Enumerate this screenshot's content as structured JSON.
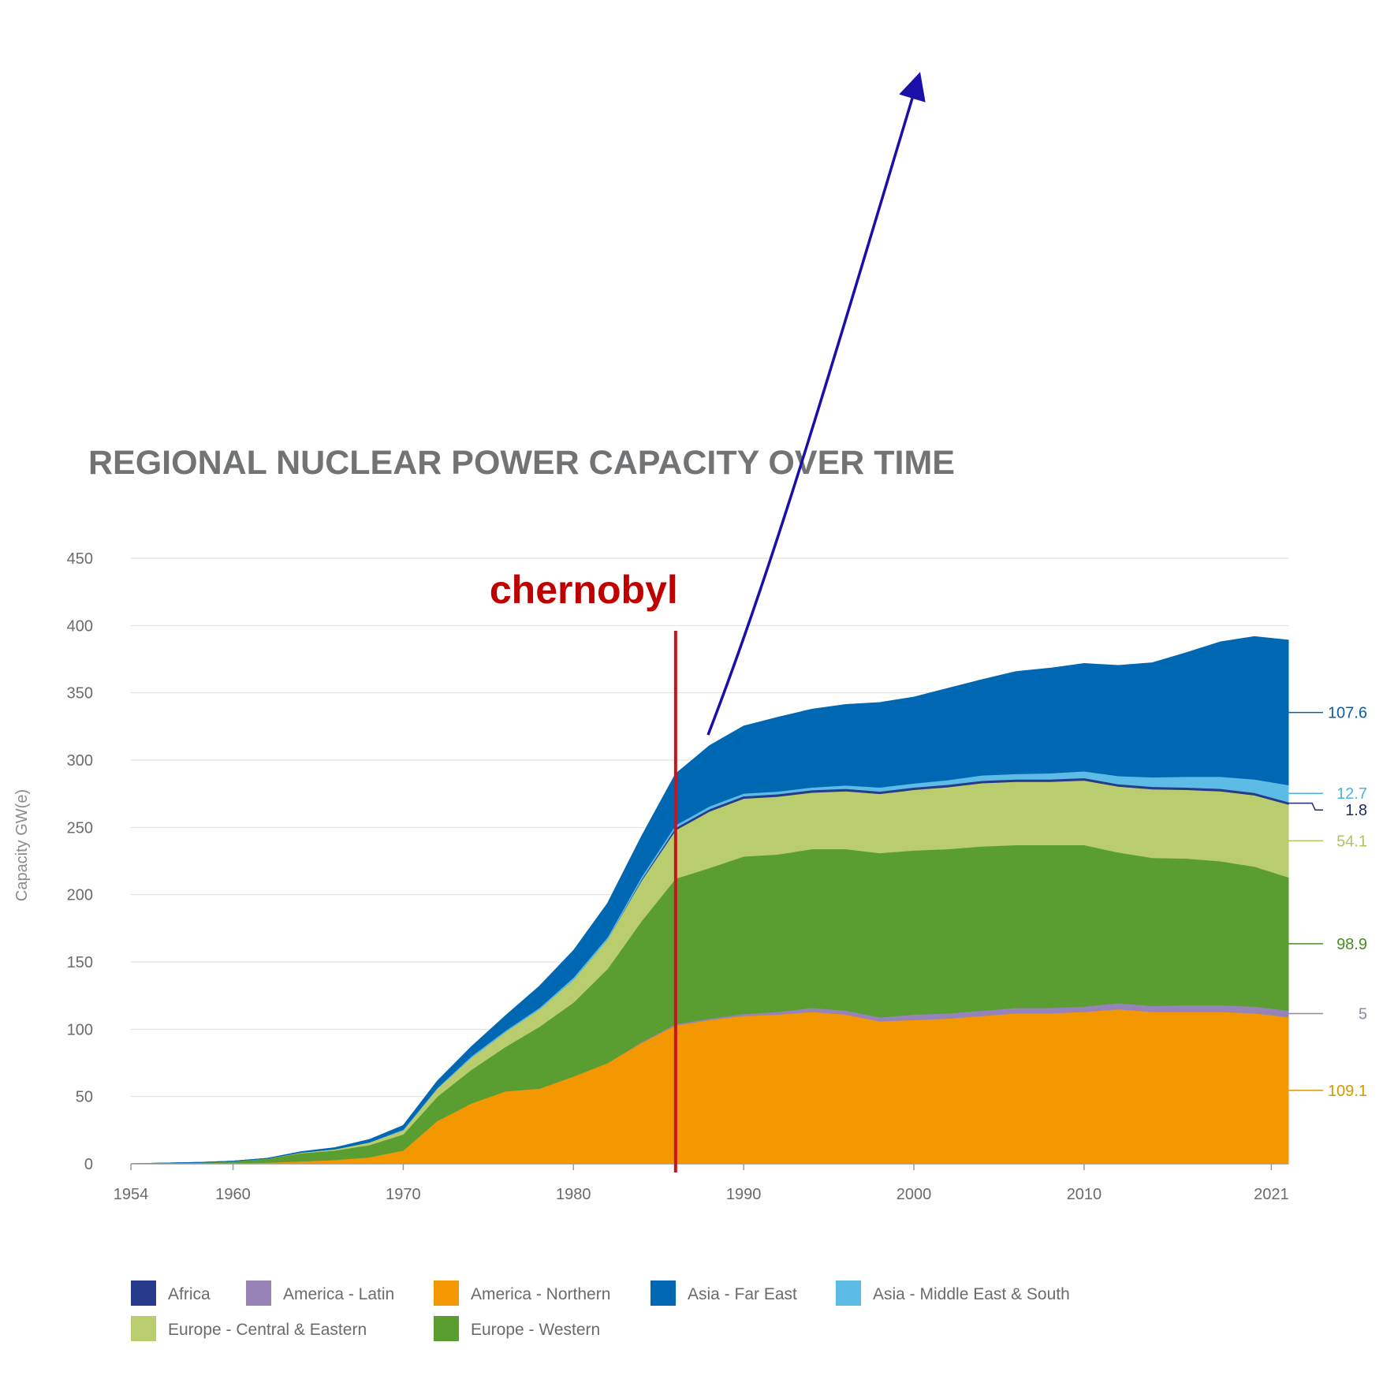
{
  "chart_data": {
    "type": "area",
    "stacked": true,
    "title": "REGIONAL NUCLEAR POWER CAPACITY OVER TIME",
    "ylabel": "Capacity GW(e)",
    "xlabel": "",
    "xlim": [
      1954,
      2022
    ],
    "ylim": [
      0,
      450
    ],
    "x_ticks": [
      "1954",
      "1960",
      "1970",
      "1980",
      "1990",
      "2000",
      "2010",
      "2021"
    ],
    "y_ticks": [
      "0",
      "50",
      "100",
      "150",
      "200",
      "250",
      "300",
      "350",
      "400",
      "450"
    ],
    "grid": true,
    "legend_position": "bottom",
    "x": [
      1954,
      1956,
      1958,
      1960,
      1962,
      1964,
      1966,
      1968,
      1970,
      1972,
      1974,
      1976,
      1978,
      1980,
      1982,
      1984,
      1986,
      1988,
      1990,
      1992,
      1994,
      1996,
      1998,
      2000,
      2002,
      2004,
      2006,
      2008,
      2010,
      2012,
      2014,
      2016,
      2018,
      2020,
      2022
    ],
    "series": [
      {
        "name": "America - Northern",
        "color": "#f39800",
        "end_label": "109.1",
        "values": [
          0,
          0,
          0,
          0.5,
          1,
          2,
          3,
          5,
          10,
          32,
          45,
          54,
          56,
          65,
          75,
          90,
          103,
          107,
          110,
          111,
          113,
          111,
          106,
          107,
          108,
          110,
          112,
          112,
          113,
          115,
          113,
          113,
          113,
          112,
          109.1
        ]
      },
      {
        "name": "America - Latin",
        "color": "#9683b8",
        "end_label": "5",
        "values": [
          0,
          0,
          0,
          0,
          0,
          0,
          0,
          0,
          0,
          0,
          0,
          0,
          0,
          0,
          0,
          0.5,
          1,
          1,
          1.5,
          2,
          3,
          3,
          3,
          4,
          4,
          4,
          4,
          4,
          4,
          4.5,
          4.5,
          5,
          5,
          5,
          5
        ]
      },
      {
        "name": "Europe - Western",
        "color": "#5a9e32",
        "end_label": "98.9",
        "values": [
          0,
          0.5,
          1,
          1.5,
          3,
          6,
          7,
          9,
          12,
          18,
          25,
          33,
          46,
          55,
          70,
          90,
          108,
          112,
          117,
          117,
          118,
          120,
          122,
          122,
          122,
          122,
          121,
          121,
          120,
          112,
          110,
          109,
          107,
          104,
          98.9
        ]
      },
      {
        "name": "Europe - Central & Eastern",
        "color": "#b9cd6f",
        "end_label": "54.1",
        "values": [
          0,
          0,
          0,
          0,
          0,
          0.5,
          1,
          2,
          3,
          6,
          9,
          11,
          13,
          17,
          22,
          30,
          36,
          42,
          43,
          43,
          42,
          43,
          44,
          45,
          46,
          47,
          47,
          47,
          48,
          49,
          51,
          51,
          52,
          53,
          54.1
        ]
      },
      {
        "name": "Africa",
        "color": "#263b8a",
        "end_label": "1.8",
        "values": [
          0,
          0,
          0,
          0,
          0,
          0,
          0,
          0,
          0,
          0,
          0,
          0,
          0,
          0,
          0,
          0.9,
          1.8,
          1.8,
          1.8,
          1.8,
          1.8,
          1.8,
          1.8,
          1.8,
          1.8,
          1.8,
          1.8,
          1.8,
          1.8,
          1.8,
          1.8,
          1.8,
          1.8,
          1.8,
          1.8
        ]
      },
      {
        "name": "Asia - Middle East & South",
        "color": "#5cbce6",
        "end_label": "12.7",
        "values": [
          0,
          0,
          0,
          0,
          0,
          0,
          0,
          0,
          0.5,
          0.5,
          1,
          1,
          1,
          1.5,
          1.5,
          2,
          2,
          2,
          2,
          2,
          2,
          2.5,
          3,
          3,
          3.5,
          4,
          4,
          4.5,
          5,
          6,
          7,
          8,
          9,
          10,
          12.7
        ]
      },
      {
        "name": "Asia - Far East",
        "color": "#0068b3",
        "end_label": "107.6",
        "values": [
          0,
          0,
          0,
          0,
          0,
          0.5,
          1,
          2,
          3,
          5,
          7,
          11,
          16,
          20,
          25,
          30,
          38,
          45,
          50,
          55,
          58,
          60,
          63,
          64,
          68,
          71,
          76,
          78,
          80,
          82,
          85,
          92,
          100,
          106,
          107.6
        ]
      }
    ],
    "annotations": [
      {
        "text": "chernobyl",
        "x": 1986,
        "color": "#c00000"
      }
    ],
    "end_label_order": [
      "Asia - Far East",
      "Asia - Middle East & South",
      "Africa",
      "Europe - Central & Eastern",
      "Europe - Western",
      "America - Latin",
      "America - Northern"
    ],
    "legend": [
      "Africa",
      "America - Latin",
      "America - Northern",
      "Asia - Far East",
      "Asia - Middle East & South",
      "Europe - Central & Eastern",
      "Europe - Western"
    ],
    "arrow_color": "#1a0fa8",
    "end_label_colors": {
      "America - Northern": "#d69a00",
      "America - Latin": "#8f86a8",
      "Europe - Western": "#4a8c24",
      "Europe - Central & Eastern": "#b3c25e",
      "Africa": "#1f2c6b",
      "Asia - Middle East & South": "#4db3e0",
      "Asia - Far East": "#0b5fa5"
    }
  }
}
